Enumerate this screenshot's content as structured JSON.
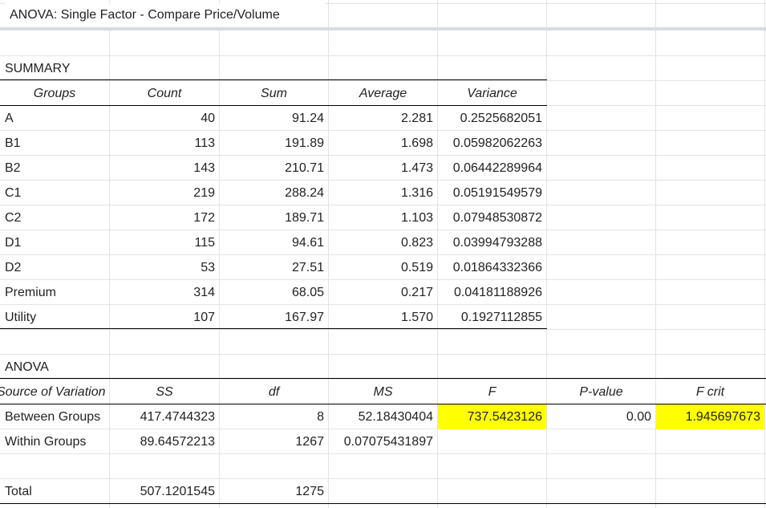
{
  "title": "ANOVA: Single Factor - Compare Price/Volume",
  "summary": {
    "label": "SUMMARY",
    "headers": {
      "groups": "Groups",
      "count": "Count",
      "sum": "Sum",
      "average": "Average",
      "variance": "Variance"
    },
    "rows": [
      {
        "group": "A",
        "count": "40",
        "sum": "91.24",
        "average": "2.281",
        "variance": "0.2525682051"
      },
      {
        "group": "B1",
        "count": "113",
        "sum": "191.89",
        "average": "1.698",
        "variance": "0.05982062263"
      },
      {
        "group": "B2",
        "count": "143",
        "sum": "210.71",
        "average": "1.473",
        "variance": "0.06442289964"
      },
      {
        "group": "C1",
        "count": "219",
        "sum": "288.24",
        "average": "1.316",
        "variance": "0.05191549579"
      },
      {
        "group": "C2",
        "count": "172",
        "sum": "189.71",
        "average": "1.103",
        "variance": "0.07948530872"
      },
      {
        "group": "D1",
        "count": "115",
        "sum": "94.61",
        "average": "0.823",
        "variance": "0.03994793288"
      },
      {
        "group": "D2",
        "count": "53",
        "sum": "27.51",
        "average": "0.519",
        "variance": "0.01864332366"
      },
      {
        "group": "Premium",
        "count": "314",
        "sum": "68.05",
        "average": "0.217",
        "variance": "0.04181188926"
      },
      {
        "group": "Utility",
        "count": "107",
        "sum": "167.97",
        "average": "1.570",
        "variance": "0.1927112855"
      }
    ]
  },
  "anova": {
    "label": "ANOVA",
    "headers": {
      "source": "Source of Variation",
      "ss": "SS",
      "df": "df",
      "ms": "MS",
      "f": "F",
      "pvalue": "P-value",
      "fcrit": "F crit"
    },
    "between": {
      "source": "Between Groups",
      "ss": "417.4744323",
      "df": "8",
      "ms": "52.18430404",
      "f": "737.5423126",
      "pvalue": "0.00",
      "fcrit": "1.945697673"
    },
    "within": {
      "source": "Within Groups",
      "ss": "89.64572213",
      "df": "1267",
      "ms": "0.07075431897"
    },
    "total": {
      "source": "Total",
      "ss": "507.1201545",
      "df": "1275"
    }
  },
  "highlight_color": "#ffff00"
}
